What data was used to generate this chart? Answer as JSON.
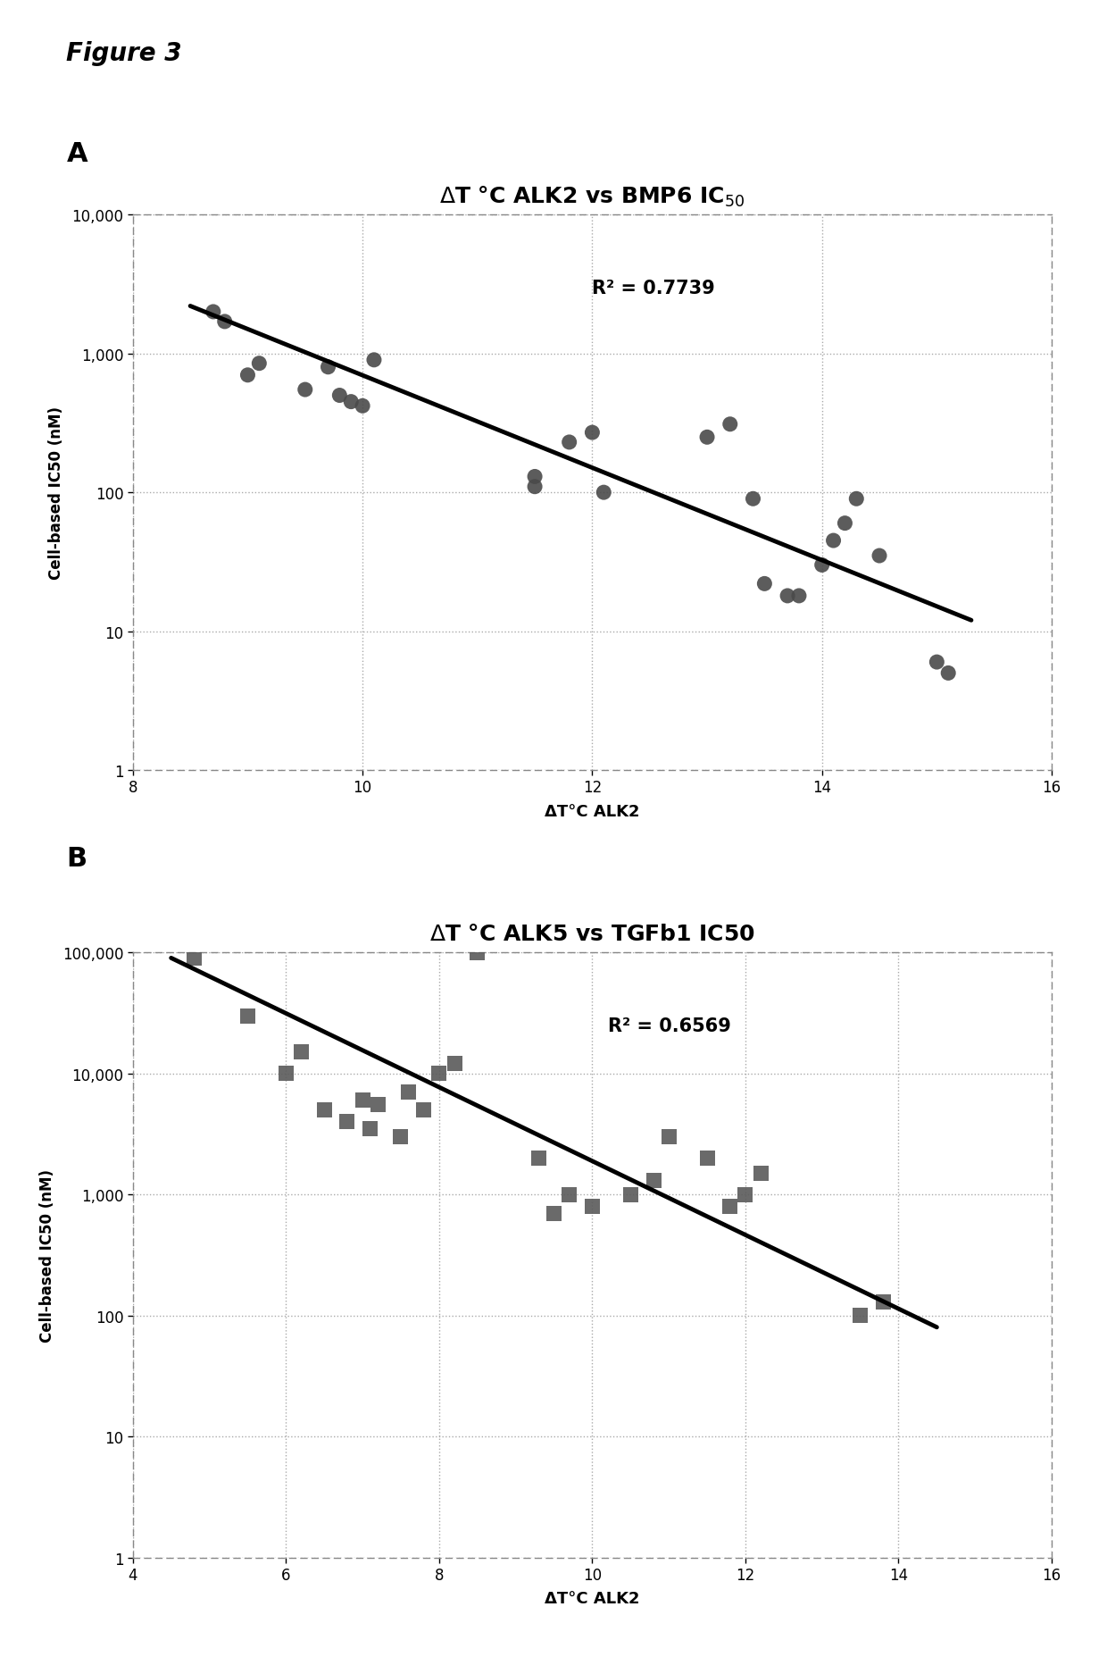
{
  "figure_title": "Figure 3",
  "panel_A": {
    "title_part1": "ΔT °C ALK2 vs BMP6 IC",
    "title_sub": "50",
    "xlabel": "ΔT°C ALK2",
    "ylabel": "Cell-based IC50 (nM)",
    "r2_text": "R² = 0.7739",
    "xlim": [
      8,
      16
    ],
    "ylim_log": [
      1,
      10000
    ],
    "xticks": [
      8,
      10,
      12,
      14,
      16
    ],
    "yticks": [
      1,
      10,
      100,
      1000,
      10000
    ],
    "ytick_labels": [
      "1",
      "10",
      "100",
      "1,000",
      "10,000"
    ],
    "scatter_x": [
      8.7,
      8.8,
      9.0,
      9.1,
      9.5,
      9.7,
      9.8,
      9.9,
      10.0,
      10.1,
      11.5,
      11.5,
      11.8,
      12.0,
      12.1,
      13.0,
      13.2,
      13.4,
      13.5,
      13.7,
      13.8,
      14.0,
      14.1,
      14.2,
      14.3,
      14.5,
      15.0,
      15.1
    ],
    "scatter_y": [
      2000,
      1700,
      700,
      850,
      550,
      800,
      500,
      450,
      420,
      900,
      130,
      110,
      230,
      270,
      100,
      250,
      310,
      90,
      22,
      18,
      18,
      30,
      45,
      60,
      90,
      35,
      6,
      5
    ],
    "trendline_x": [
      8.5,
      15.3
    ],
    "trendline_y": [
      2200,
      12
    ],
    "r2_x": 12.0,
    "r2_y": 3000
  },
  "panel_B": {
    "title": "ΔT °C ALK5 vs TGFb1 IC50",
    "xlabel": "ΔT°C ALK2",
    "ylabel": "Cell-based IC50 (nM)",
    "r2_text": "R² = 0.6569",
    "xlim": [
      4,
      16
    ],
    "ylim_log": [
      1,
      100000
    ],
    "xticks": [
      4,
      6,
      8,
      10,
      12,
      14,
      16
    ],
    "yticks": [
      1,
      10,
      100,
      1000,
      10000,
      100000
    ],
    "ytick_labels": [
      "1",
      "10",
      "100",
      "1,000",
      "10,000",
      "100,000"
    ],
    "scatter_x": [
      4.8,
      5.5,
      6.0,
      6.2,
      6.5,
      6.8,
      7.0,
      7.1,
      7.2,
      7.5,
      7.6,
      7.8,
      8.0,
      8.2,
      8.5,
      9.3,
      9.5,
      9.7,
      10.0,
      10.5,
      10.8,
      11.0,
      11.5,
      11.8,
      12.0,
      12.2,
      13.5,
      13.8
    ],
    "scatter_y": [
      90000,
      30000,
      10000,
      15000,
      5000,
      4000,
      6000,
      3500,
      5500,
      3000,
      7000,
      5000,
      10000,
      12000,
      100000,
      2000,
      700,
      1000,
      800,
      1000,
      1300,
      3000,
      2000,
      800,
      1000,
      1500,
      100,
      130
    ],
    "trendline_x": [
      4.5,
      14.5
    ],
    "trendline_y": [
      90000,
      80
    ],
    "r2_x": 10.2,
    "r2_y": 25000
  },
  "marker_color_A": "#4a4a4a",
  "marker_color_B": "#5a5a5a",
  "line_color": "#000000",
  "grid_color": "#aaaaaa",
  "border_color": "#888888"
}
